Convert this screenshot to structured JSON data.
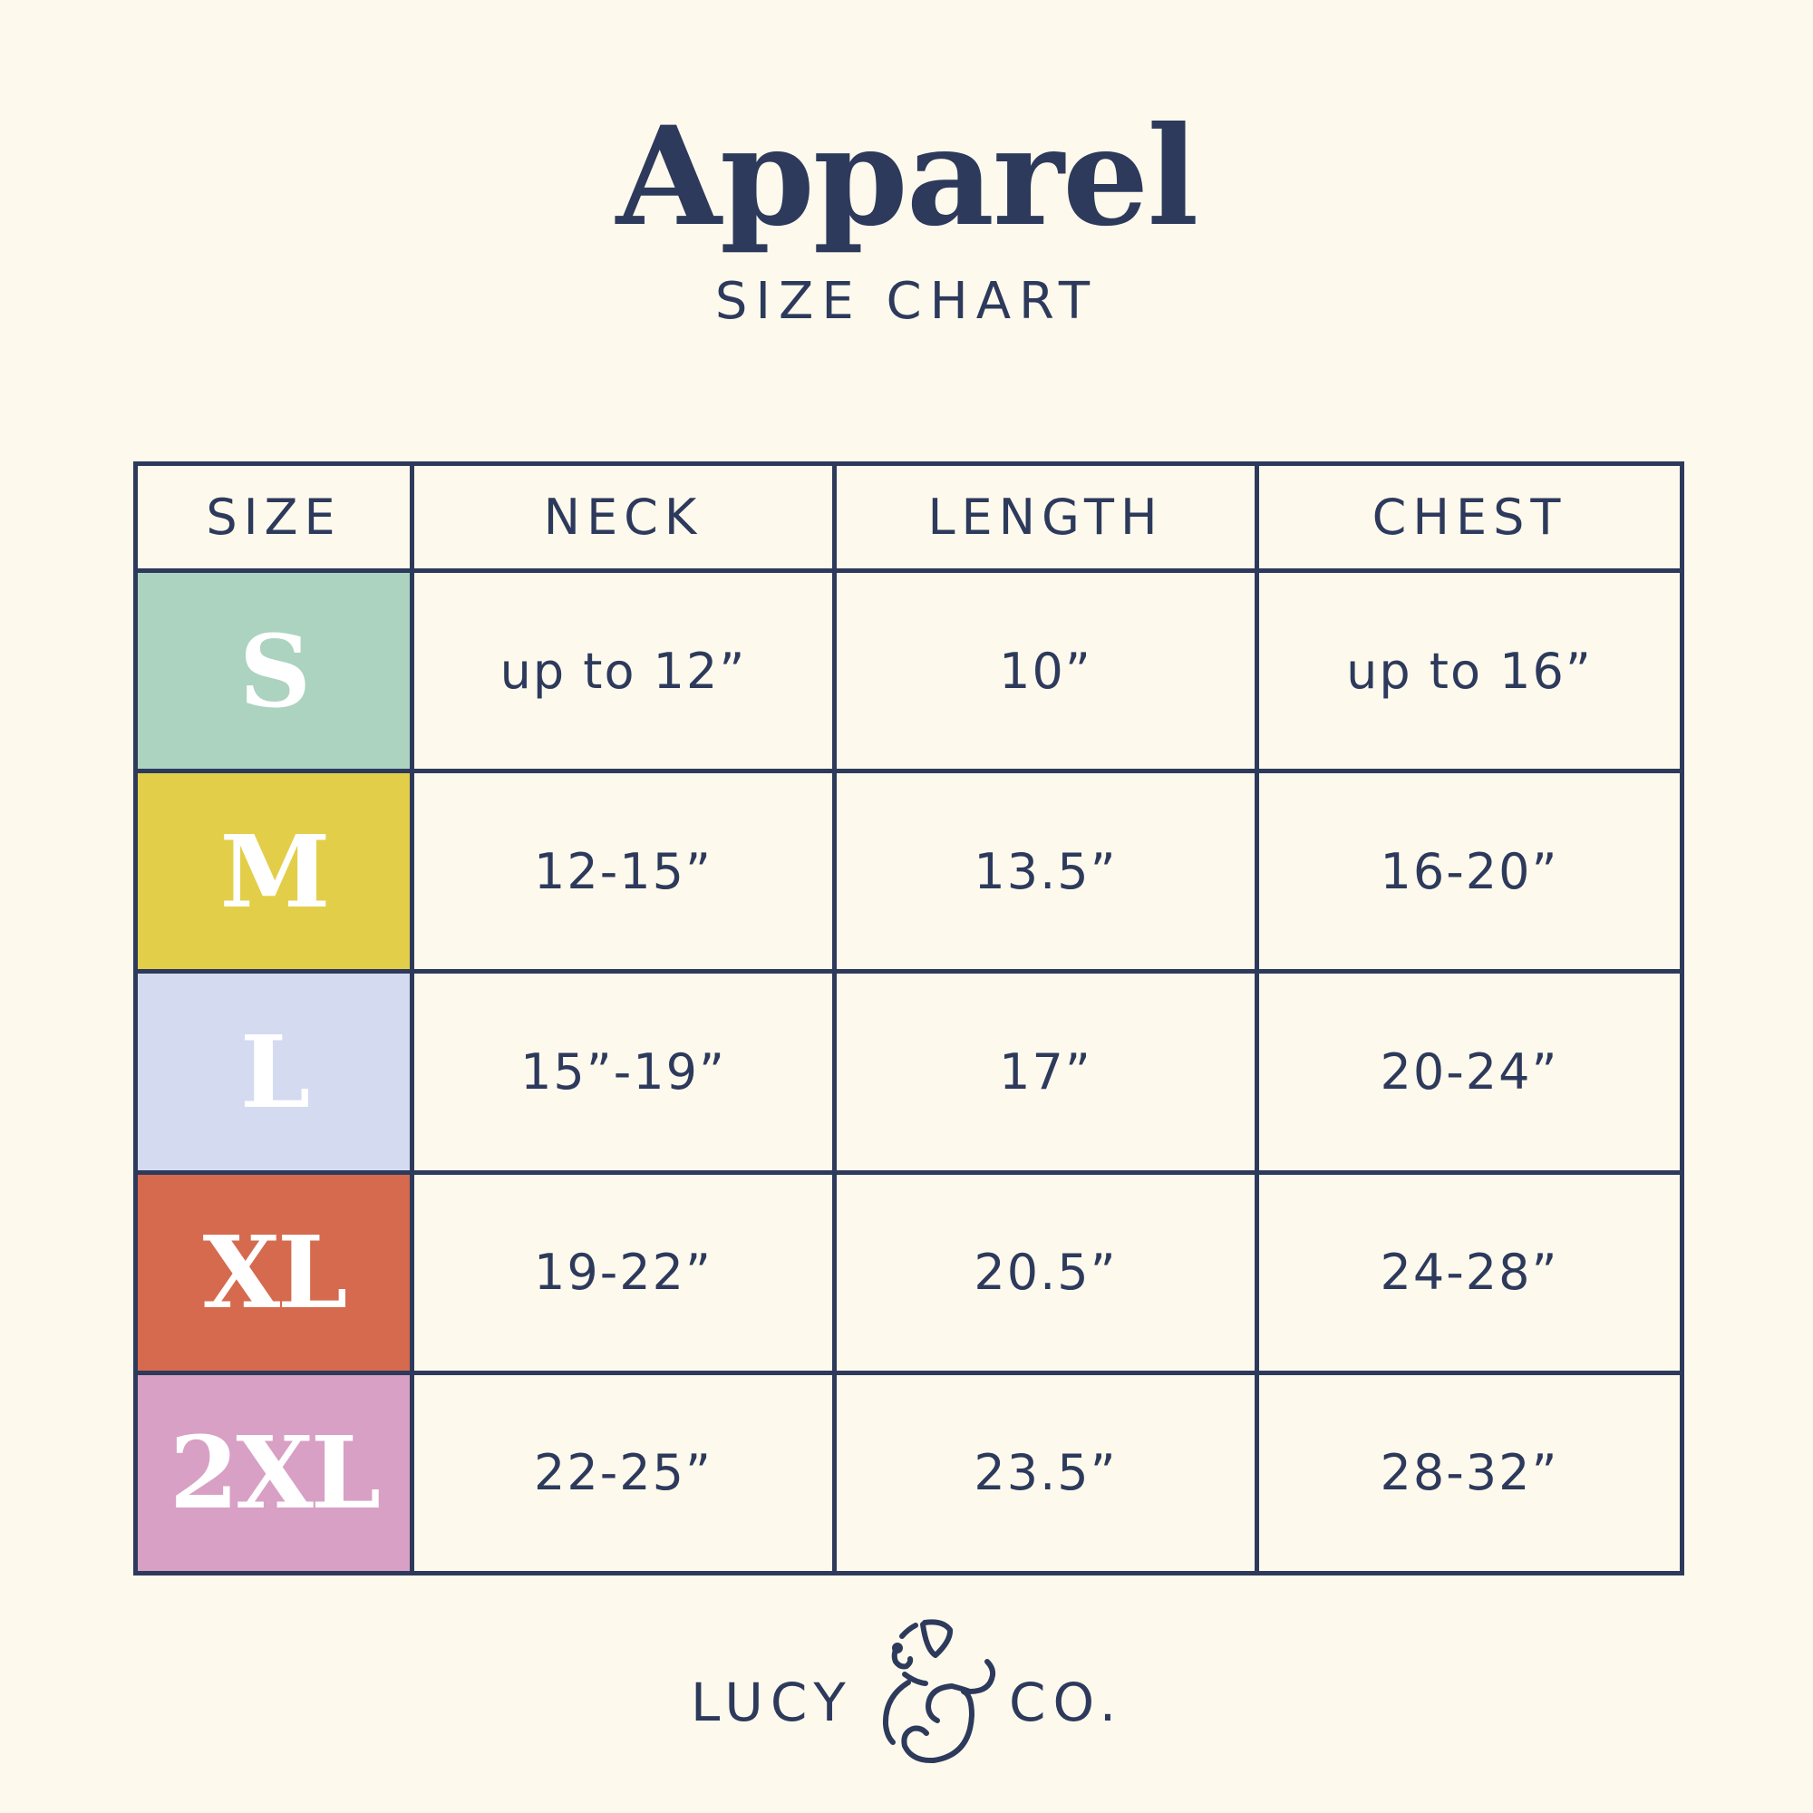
{
  "header": {
    "title": "Apparel",
    "subtitle": "SIZE CHART"
  },
  "table": {
    "columns": [
      "SIZE",
      "NECK",
      "LENGTH",
      "CHEST"
    ],
    "rows": [
      {
        "size": "S",
        "color": "#acd3c0",
        "neck": "up to 12”",
        "length": "10”",
        "chest": "up to 16”"
      },
      {
        "size": "M",
        "color": "#e3ce4a",
        "neck": "12-15”",
        "length": "13.5”",
        "chest": "16-20”"
      },
      {
        "size": "L",
        "color": "#d4daf0",
        "neck": "15”-19”",
        "length": "17”",
        "chest": "20-24”"
      },
      {
        "size": "XL",
        "color": "#d56a4e",
        "neck": "19-22”",
        "length": "20.5”",
        "chest": "24-28”"
      },
      {
        "size": "2XL",
        "color": "#d8a0c4",
        "neck": "22-25”",
        "length": "23.5”",
        "chest": "28-32”"
      }
    ]
  },
  "brand": {
    "logo_text": "LUCY & CO.",
    "left": "LUCY",
    "right": "CO.",
    "icon": "dog-ampersand-icon"
  },
  "colors": {
    "navy": "#2d3a5c",
    "background": "#fdf9ec"
  }
}
